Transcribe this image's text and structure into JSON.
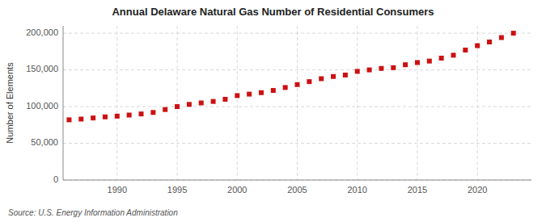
{
  "chart_data": {
    "type": "scatter",
    "title": "Annual Delaware Natural Gas Number of Residential Consumers",
    "ylabel": "Number of Elements",
    "source": "Source: U.S. Energy Information Administration",
    "color": "#cc1111",
    "marker": "square",
    "grid": true,
    "xlim": [
      1985.5,
      2024.5
    ],
    "ylim": [
      0,
      210000
    ],
    "xticks": [
      1990,
      1995,
      2000,
      2005,
      2010,
      2015,
      2020
    ],
    "yticks": [
      0,
      {
        "value": 50000,
        "label": "50,000"
      },
      {
        "value": 100000,
        "label": "100,000"
      },
      {
        "value": 150000,
        "label": "150,000"
      },
      {
        "value": 200000,
        "label": "200,000"
      }
    ],
    "x": [
      1986,
      1987,
      1988,
      1989,
      1990,
      1991,
      1992,
      1993,
      1994,
      1995,
      1996,
      1997,
      1998,
      1999,
      2000,
      2001,
      2002,
      2003,
      2004,
      2005,
      2006,
      2007,
      2008,
      2009,
      2010,
      2011,
      2012,
      2013,
      2014,
      2015,
      2016,
      2017,
      2018,
      2019,
      2020,
      2021,
      2022,
      2023
    ],
    "values": [
      82000,
      83000,
      84500,
      86000,
      87000,
      88500,
      90000,
      92000,
      96000,
      100000,
      103000,
      105000,
      107000,
      110000,
      115000,
      117000,
      119000,
      122000,
      126000,
      130000,
      134000,
      138000,
      141000,
      143000,
      148000,
      150000,
      152000,
      153000,
      157000,
      160000,
      162000,
      166000,
      170000,
      177000,
      183000,
      188000,
      194000,
      200000
    ]
  }
}
